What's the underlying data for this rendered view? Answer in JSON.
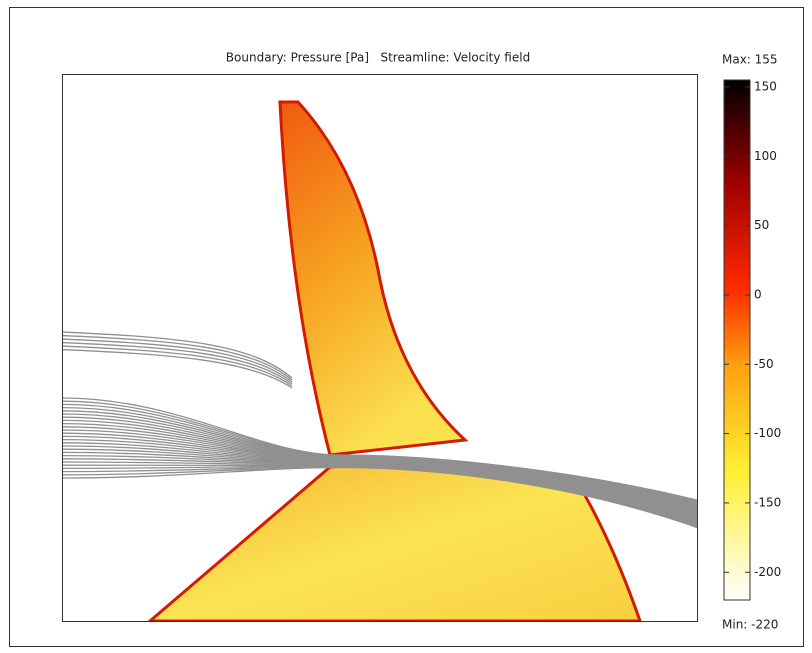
{
  "chart_data": {
    "type": "surface",
    "title": "Boundary: Pressure [Pa]   Streamline: Velocity field",
    "colorbar": {
      "max_label": "Max: 155",
      "min_label": "Min: -220",
      "zlim": [
        -220,
        155
      ],
      "zticks": [
        -200,
        -150,
        -100,
        -50,
        0,
        50,
        100,
        150
      ]
    }
  }
}
